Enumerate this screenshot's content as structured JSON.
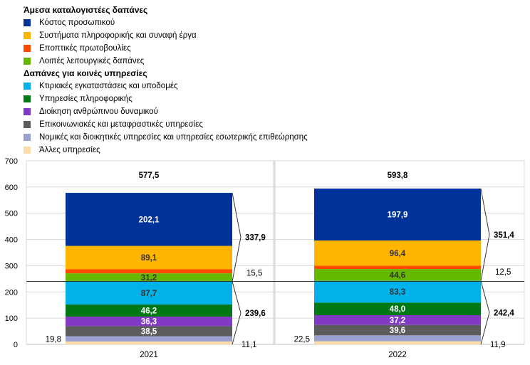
{
  "legend": {
    "groups": [
      {
        "title": "Άμεσα καταλογιστέες δαπάνες",
        "items": [
          {
            "label": "Κόστος προσωπικού",
            "color": "#003299"
          },
          {
            "label": "Συστήματα πληροφορικής και συναφή έργα",
            "color": "#FFB400"
          },
          {
            "label": "Εποπτικές πρωτοβουλίες",
            "color": "#FF4B00"
          },
          {
            "label": "Λοιπές λειτουργικές δαπάνες",
            "color": "#65B800"
          }
        ]
      },
      {
        "title": "Δαπάνες για κοινές υπηρεσίες",
        "items": [
          {
            "label": "Κτιριακές εγκαταστάσεις και υποδομές",
            "color": "#00B1EA"
          },
          {
            "label": "Υπηρεσίες πληροφορικής",
            "color": "#007816"
          },
          {
            "label": "Διοίκηση ανθρώπινου δυναμικού",
            "color": "#8139C6"
          },
          {
            "label": "Επικοινωνιακές και μεταφραστικές υπηρεσίες",
            "color": "#5C5C5C"
          },
          {
            "label": "Νομικές και διοικητικές υπηρεσίες και υπηρεσίες εσωτερικής επιθεώρησης",
            "color": "#98A1D0"
          },
          {
            "label": "Άλλες υπηρεσίες",
            "color": "#FDDDA7"
          }
        ]
      }
    ]
  },
  "chart_data": {
    "type": "bar",
    "stacked": true,
    "categories": [
      "2021",
      "2022"
    ],
    "ylim": [
      0,
      700
    ],
    "yticks": [
      "0",
      "100",
      "200",
      "300",
      "400",
      "500",
      "600",
      "700"
    ],
    "series": [
      {
        "name": "Άλλες υπηρεσίες",
        "color": "#FDDDA7",
        "values": [
          11.1,
          11.9
        ],
        "labels": [
          "",
          ""
        ]
      },
      {
        "name": "Νομικές και διοικητικές υπηρεσίες και υπηρεσίες εσωτερικής επιθεώρησης",
        "color": "#98A1D0",
        "values": [
          19.8,
          22.5
        ],
        "labels": [
          "",
          ""
        ]
      },
      {
        "name": "Επικοινωνιακές και μεταφραστικές υπηρεσίες",
        "color": "#5C5C5C",
        "values": [
          38.5,
          39.6
        ],
        "labels": [
          "38,5",
          "39,6"
        ]
      },
      {
        "name": "Διοίκηση ανθρώπινου δυναμικού",
        "color": "#8139C6",
        "values": [
          36.3,
          37.2
        ],
        "labels": [
          "36,3",
          "37,2"
        ]
      },
      {
        "name": "Υπηρεσίες πληροφορικής",
        "color": "#007816",
        "values": [
          46.2,
          48.0
        ],
        "labels": [
          "46,2",
          "48,0"
        ]
      },
      {
        "name": "Κτιριακές εγκαταστάσεις και υποδομές",
        "color": "#00B1EA",
        "values": [
          87.7,
          83.3
        ],
        "labels": [
          "87,7",
          "83,3"
        ]
      },
      {
        "name": "Λοιπές λειτουργικές δαπάνες",
        "color": "#65B800",
        "values": [
          31.2,
          44.6
        ],
        "labels": [
          "31,2",
          "44,6"
        ]
      },
      {
        "name": "Εποπτικές πρωτοβουλίες",
        "color": "#FF4B00",
        "values": [
          15.5,
          12.5
        ],
        "labels": [
          "",
          ""
        ]
      },
      {
        "name": "Συστήματα πληροφορικής και συναφή έργα",
        "color": "#FFB400",
        "values": [
          89.1,
          96.4
        ],
        "labels": [
          "89,1",
          "96,4"
        ]
      },
      {
        "name": "Κόστος προσωπικού",
        "color": "#003299",
        "values": [
          202.1,
          197.9
        ],
        "labels": [
          "202,1",
          "197,9"
        ]
      }
    ],
    "totals": [
      "577,5",
      "593,8"
    ],
    "direct_totals": [
      "337,9",
      "351,4"
    ],
    "shared_totals": [
      "239,6",
      "242,4"
    ],
    "side_labels": {
      "supervisory": [
        "15,5",
        "12,5"
      ],
      "other_services": [
        "11,1",
        "11,9"
      ],
      "legal_admin": [
        "19,8",
        "22,5"
      ]
    }
  }
}
